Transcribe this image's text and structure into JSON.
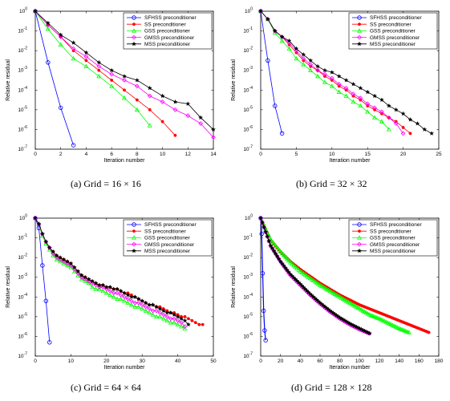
{
  "chart_data": [
    {
      "type": "line",
      "caption": "(a)  Grid = 16 × 16",
      "xlabel": "Iteration number",
      "ylabel": "Relative residual",
      "xlim": [
        0,
        14
      ],
      "xticks": [
        "0",
        "2",
        "4",
        "6",
        "8",
        "10",
        "12",
        "14"
      ],
      "y_scale": "log",
      "ylim_exp": [
        -7,
        0
      ],
      "yticks": [
        "10^0",
        "10^-1",
        "10^-2",
        "10^-3",
        "10^-4",
        "10^-5",
        "10^-6",
        "10^-7"
      ],
      "legend_position": "top-right",
      "series": [
        {
          "name": "SFHSS preconditioner",
          "color": "#0000ff",
          "marker": "circle",
          "x": [
            0,
            1,
            2,
            3
          ],
          "y_exp": [
            0,
            -2.6,
            -4.9,
            -6.8
          ]
        },
        {
          "name": "SS preconditioner",
          "color": "#ff0000",
          "marker": "dot",
          "x": [
            0,
            1,
            2,
            3,
            4,
            5,
            6,
            7,
            8,
            9,
            10,
            11
          ],
          "y_exp": [
            0,
            -0.7,
            -1.3,
            -2.0,
            -2.5,
            -3.0,
            -3.5,
            -4.0,
            -4.5,
            -5.0,
            -5.6,
            -6.3
          ]
        },
        {
          "name": "GSS preconditioner",
          "color": "#00ff00",
          "marker": "triangle",
          "x": [
            0,
            1,
            2,
            3,
            4,
            5,
            6,
            7,
            8,
            9
          ],
          "y_exp": [
            0,
            -0.9,
            -1.7,
            -2.4,
            -2.8,
            -3.3,
            -3.8,
            -4.4,
            -5.0,
            -5.8
          ]
        },
        {
          "name": "GMSS preconditioner",
          "color": "#ff00ff",
          "marker": "diamond",
          "x": [
            0,
            1,
            2,
            3,
            4,
            5,
            6,
            7,
            8,
            9,
            10,
            11,
            12,
            13,
            14
          ],
          "y_exp": [
            0,
            -0.7,
            -1.3,
            -1.9,
            -2.3,
            -2.8,
            -3.2,
            -3.5,
            -3.8,
            -4.3,
            -4.6,
            -5.0,
            -5.3,
            -5.7,
            -6.4
          ]
        },
        {
          "name": "MSS preconditioner",
          "color": "#000000",
          "marker": "star",
          "x": [
            0,
            1,
            2,
            3,
            4,
            5,
            6,
            7,
            8,
            9,
            10,
            11,
            12,
            13,
            14
          ],
          "y_exp": [
            0,
            -0.6,
            -1.2,
            -1.6,
            -2.1,
            -2.6,
            -3.0,
            -3.3,
            -3.5,
            -3.9,
            -4.3,
            -4.6,
            -4.7,
            -5.4,
            -6.0
          ]
        }
      ]
    },
    {
      "type": "line",
      "caption": "(b)  Grid = 32 × 32",
      "xlabel": "Iteration number",
      "ylabel": "Relative residual",
      "xlim": [
        0,
        25
      ],
      "xticks": [
        "0",
        "5",
        "10",
        "15",
        "20",
        "25"
      ],
      "y_scale": "log",
      "ylim_exp": [
        -7,
        0
      ],
      "yticks": [
        "10^0",
        "10^-1",
        "10^-2",
        "10^-3",
        "10^-4",
        "10^-5",
        "10^-6",
        "10^-7"
      ],
      "legend_position": "top-right",
      "series": [
        {
          "name": "SFHSS preconditioner",
          "color": "#0000ff",
          "marker": "circle",
          "x": [
            0,
            1,
            2,
            3
          ],
          "y_exp": [
            0,
            -2.5,
            -4.8,
            -6.2
          ]
        },
        {
          "name": "SS preconditioner",
          "color": "#ff0000",
          "marker": "dot",
          "x": [
            0,
            1,
            2,
            3,
            4,
            5,
            6,
            7,
            8,
            9,
            10,
            11,
            12,
            13,
            14,
            15,
            16,
            17,
            18,
            19,
            20,
            21
          ],
          "y_exp": [
            0,
            -0.4,
            -1.0,
            -1.3,
            -1.7,
            -2.1,
            -2.5,
            -2.8,
            -3.0,
            -3.3,
            -3.5,
            -3.8,
            -4.0,
            -4.3,
            -4.5,
            -4.8,
            -5.0,
            -5.2,
            -5.4,
            -5.6,
            -5.9,
            -6.2
          ]
        },
        {
          "name": "GSS preconditioner",
          "color": "#00ff00",
          "marker": "triangle",
          "x": [
            0,
            1,
            2,
            3,
            4,
            5,
            6,
            7,
            8,
            9,
            10,
            11,
            12,
            13,
            14,
            15,
            16,
            17,
            18
          ],
          "y_exp": [
            0,
            -0.4,
            -1.1,
            -1.5,
            -1.9,
            -2.4,
            -2.7,
            -3.0,
            -3.3,
            -3.6,
            -3.8,
            -4.1,
            -4.3,
            -4.6,
            -4.8,
            -5.1,
            -5.4,
            -5.6,
            -6.0
          ]
        },
        {
          "name": "GMSS preconditioner",
          "color": "#ff00ff",
          "marker": "diamond",
          "x": [
            0,
            1,
            2,
            3,
            4,
            5,
            6,
            7,
            8,
            9,
            10,
            11,
            12,
            13,
            14,
            15,
            16,
            17,
            18,
            19,
            20
          ],
          "y_exp": [
            0,
            -0.4,
            -1.0,
            -1.3,
            -1.6,
            -2.0,
            -2.4,
            -2.7,
            -3.0,
            -3.2,
            -3.4,
            -3.7,
            -3.9,
            -4.2,
            -4.4,
            -4.7,
            -4.9,
            -5.1,
            -5.4,
            -5.7,
            -6.2
          ]
        },
        {
          "name": "MSS preconditioner",
          "color": "#000000",
          "marker": "star",
          "x": [
            0,
            1,
            2,
            3,
            4,
            5,
            6,
            7,
            8,
            9,
            10,
            11,
            12,
            13,
            14,
            15,
            16,
            17,
            18,
            19,
            20,
            21,
            22,
            23,
            24
          ],
          "y_exp": [
            0,
            -0.4,
            -1.0,
            -1.3,
            -1.5,
            -1.9,
            -2.2,
            -2.5,
            -2.8,
            -3.0,
            -3.1,
            -3.3,
            -3.5,
            -3.7,
            -3.9,
            -4.1,
            -4.3,
            -4.5,
            -4.8,
            -5.0,
            -5.2,
            -5.5,
            -5.7,
            -6.0,
            -6.2
          ]
        }
      ]
    },
    {
      "type": "line",
      "caption": "(c)  Grid = 64 × 64",
      "xlabel": "Iteration number",
      "ylabel": "Relative residual",
      "xlim": [
        0,
        50
      ],
      "xticks": [
        "0",
        "10",
        "20",
        "30",
        "40",
        "50"
      ],
      "y_scale": "log",
      "ylim_exp": [
        -7,
        0
      ],
      "yticks": [
        "10^0",
        "10^-1",
        "10^-2",
        "10^-3",
        "10^-4",
        "10^-5",
        "10^-6",
        "10^-7"
      ],
      "legend_position": "top-right",
      "series": [
        {
          "name": "SFHSS preconditioner",
          "color": "#0000ff",
          "marker": "circle",
          "x": [
            0,
            1,
            2,
            3,
            4
          ],
          "y_exp": [
            0,
            -0.5,
            -2.4,
            -4.2,
            -6.3
          ]
        },
        {
          "name": "SS preconditioner",
          "color": "#ff0000",
          "marker": "dot",
          "x": [
            0,
            1,
            2,
            3,
            4,
            5,
            6,
            7,
            8,
            9,
            10,
            11,
            12,
            13,
            14,
            15,
            16,
            17,
            18,
            19,
            20,
            21,
            22,
            23,
            24,
            25,
            26,
            27,
            28,
            29,
            30,
            31,
            32,
            33,
            34,
            35,
            36,
            37,
            38,
            39,
            40,
            41,
            42,
            43,
            44,
            45,
            46,
            47
          ],
          "y_exp": [
            0,
            -0.3,
            -0.8,
            -1.2,
            -1.5,
            -1.7,
            -1.9,
            -2.0,
            -2.1,
            -2.2,
            -2.3,
            -2.5,
            -2.7,
            -2.9,
            -3.0,
            -3.1,
            -3.2,
            -3.3,
            -3.4,
            -3.4,
            -3.5,
            -3.5,
            -3.6,
            -3.6,
            -3.7,
            -3.8,
            -3.8,
            -3.9,
            -4.0,
            -4.1,
            -4.2,
            -4.3,
            -4.4,
            -4.4,
            -4.5,
            -4.5,
            -4.6,
            -4.7,
            -4.8,
            -4.8,
            -4.9,
            -5.0,
            -5.0,
            -5.1,
            -5.2,
            -5.3,
            -5.4,
            -5.4
          ]
        },
        {
          "name": "GSS preconditioner",
          "color": "#00ff00",
          "marker": "triangle",
          "x": [
            0,
            1,
            2,
            3,
            4,
            5,
            6,
            7,
            8,
            9,
            10,
            11,
            12,
            13,
            14,
            15,
            16,
            17,
            18,
            19,
            20,
            21,
            22,
            23,
            24,
            25,
            26,
            27,
            28,
            29,
            30,
            31,
            32,
            33,
            34,
            35,
            36,
            37,
            38,
            39,
            40,
            41,
            42
          ],
          "y_exp": [
            0,
            -0.3,
            -0.9,
            -1.3,
            -1.6,
            -1.9,
            -2.1,
            -2.2,
            -2.3,
            -2.4,
            -2.5,
            -2.7,
            -2.9,
            -3.1,
            -3.2,
            -3.3,
            -3.5,
            -3.6,
            -3.6,
            -3.7,
            -3.8,
            -3.9,
            -4.0,
            -4.1,
            -4.1,
            -4.2,
            -4.3,
            -4.4,
            -4.5,
            -4.5,
            -4.6,
            -4.7,
            -4.8,
            -4.9,
            -5.0,
            -5.0,
            -5.1,
            -5.2,
            -5.3,
            -5.3,
            -5.4,
            -5.5,
            -5.6
          ]
        },
        {
          "name": "GMSS preconditioner",
          "color": "#ff00ff",
          "marker": "diamond",
          "x": [
            0,
            1,
            2,
            3,
            4,
            5,
            6,
            7,
            8,
            9,
            10,
            11,
            12,
            13,
            14,
            15,
            16,
            17,
            18,
            19,
            20,
            21,
            22,
            23,
            24,
            25,
            26,
            27,
            28,
            29,
            30,
            31,
            32,
            33,
            34,
            35,
            36,
            37,
            38,
            39,
            40,
            41,
            42
          ],
          "y_exp": [
            0,
            -0.3,
            -0.8,
            -1.2,
            -1.5,
            -1.8,
            -2.0,
            -2.1,
            -2.2,
            -2.3,
            -2.4,
            -2.6,
            -2.8,
            -3.0,
            -3.1,
            -3.2,
            -3.3,
            -3.4,
            -3.5,
            -3.5,
            -3.6,
            -3.7,
            -3.8,
            -3.8,
            -3.9,
            -4.0,
            -4.1,
            -4.2,
            -4.3,
            -4.3,
            -4.4,
            -4.5,
            -4.6,
            -4.7,
            -4.7,
            -4.8,
            -4.9,
            -5.0,
            -5.1,
            -5.1,
            -5.2,
            -5.3,
            -5.5
          ]
        },
        {
          "name": "MSS preconditioner",
          "color": "#000000",
          "marker": "star",
          "x": [
            0,
            1,
            2,
            3,
            4,
            5,
            6,
            7,
            8,
            9,
            10,
            11,
            12,
            13,
            14,
            15,
            16,
            17,
            18,
            19,
            20,
            21,
            22,
            23,
            24,
            25,
            26,
            27,
            28,
            29,
            30,
            31,
            32,
            33,
            34,
            35,
            36,
            37,
            38,
            39,
            40,
            41,
            42,
            43
          ],
          "y_exp": [
            0,
            -0.3,
            -0.8,
            -1.2,
            -1.5,
            -1.7,
            -1.9,
            -2.0,
            -2.1,
            -2.2,
            -2.3,
            -2.5,
            -2.7,
            -2.9,
            -3.0,
            -3.1,
            -3.2,
            -3.3,
            -3.4,
            -3.4,
            -3.5,
            -3.5,
            -3.6,
            -3.6,
            -3.7,
            -3.8,
            -3.9,
            -4.0,
            -4.0,
            -4.1,
            -4.2,
            -4.3,
            -4.4,
            -4.4,
            -4.5,
            -4.6,
            -4.7,
            -4.8,
            -4.8,
            -4.9,
            -5.0,
            -5.1,
            -5.2,
            -5.4
          ]
        }
      ]
    },
    {
      "type": "line",
      "caption": "(d)  Grid = 128 × 128",
      "xlabel": "Iteration number",
      "ylabel": "Relative residual",
      "xlim": [
        0,
        180
      ],
      "xticks": [
        "0",
        "20",
        "40",
        "60",
        "80",
        "100",
        "120",
        "140",
        "160",
        "180"
      ],
      "y_scale": "log",
      "ylim_exp": [
        -7,
        0
      ],
      "yticks": [
        "10^0",
        "10^-1",
        "10^-2",
        "10^-3",
        "10^-4",
        "10^-5",
        "10^-6",
        "10^-7"
      ],
      "legend_position": "top-right",
      "series": [
        {
          "name": "SFHSS preconditioner",
          "color": "#0000ff",
          "marker": "circle",
          "x": [
            0,
            1,
            2,
            3,
            4,
            5
          ],
          "y_exp": [
            0,
            -0.8,
            -2.8,
            -4.7,
            -5.7,
            -6.2
          ]
        },
        {
          "name": "SS preconditioner",
          "color": "#ff0000",
          "marker": "dot",
          "x": [
            0,
            10,
            20,
            30,
            40,
            50,
            60,
            70,
            80,
            90,
            100,
            110,
            120,
            130,
            140,
            150,
            160,
            170
          ],
          "y_exp": [
            0,
            -1.1,
            -1.7,
            -2.2,
            -2.6,
            -2.95,
            -3.3,
            -3.6,
            -3.9,
            -4.15,
            -4.4,
            -4.6,
            -4.8,
            -5.0,
            -5.2,
            -5.4,
            -5.6,
            -5.8
          ]
        },
        {
          "name": "GSS preconditioner",
          "color": "#00ff00",
          "marker": "triangle",
          "x": [
            0,
            10,
            20,
            30,
            40,
            50,
            60,
            70,
            80,
            90,
            100,
            110,
            120,
            130,
            140,
            150
          ],
          "y_exp": [
            0,
            -1.1,
            -1.7,
            -2.25,
            -2.7,
            -3.05,
            -3.4,
            -3.7,
            -4.0,
            -4.3,
            -4.6,
            -4.9,
            -5.1,
            -5.35,
            -5.6,
            -5.8
          ]
        },
        {
          "name": "GMSS preconditioner",
          "color": "#ff00ff",
          "marker": "diamond",
          "x": [
            0,
            10,
            20,
            30,
            40,
            50,
            60,
            70,
            80,
            90,
            100,
            110
          ],
          "y_exp": [
            0,
            -1.4,
            -2.2,
            -2.9,
            -3.4,
            -3.9,
            -4.35,
            -4.75,
            -5.1,
            -5.4,
            -5.65,
            -5.85
          ]
        },
        {
          "name": "MSS preconditioner",
          "color": "#000000",
          "marker": "star",
          "x": [
            0,
            10,
            20,
            30,
            40,
            50,
            60,
            70,
            80,
            90,
            100,
            110
          ],
          "y_exp": [
            0,
            -1.4,
            -2.2,
            -2.85,
            -3.35,
            -3.85,
            -4.3,
            -4.7,
            -5.05,
            -5.35,
            -5.6,
            -5.85
          ]
        }
      ]
    }
  ]
}
